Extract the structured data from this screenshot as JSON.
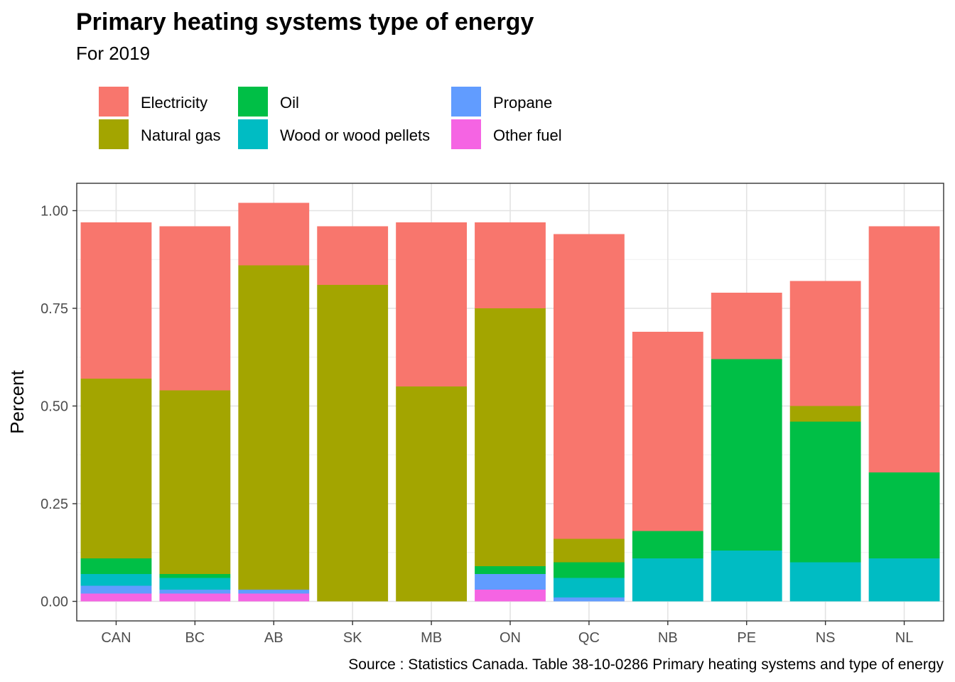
{
  "chart_data": {
    "type": "bar",
    "stacked": true,
    "title": "Primary heating systems type of energy",
    "subtitle": "For 2019",
    "xlabel": "",
    "ylabel": "Percent",
    "caption": "Source : Statistics Canada. Table 38-10-0286 Primary heating systems and type of energy",
    "ylim": [
      -0.05,
      1.07
    ],
    "yticks": [
      "0.00",
      "0.25",
      "0.50",
      "0.75",
      "1.00"
    ],
    "ytick_values": [
      0,
      0.25,
      0.5,
      0.75,
      1.0
    ],
    "grid": true,
    "legend_position": "top",
    "categories": [
      "CAN",
      "BC",
      "AB",
      "SK",
      "MB",
      "ON",
      "QC",
      "NB",
      "PE",
      "NS",
      "NL"
    ],
    "stack_order_bottom_to_top": [
      "Other fuel",
      "Propane",
      "Wood or wood pellets",
      "Oil",
      "Natural gas",
      "Electricity"
    ],
    "series": [
      {
        "name": "Electricity",
        "color": "#F8766D",
        "values": [
          0.4,
          0.42,
          0.16,
          0.15,
          0.42,
          0.22,
          0.78,
          0.51,
          0.17,
          0.32,
          0.63
        ]
      },
      {
        "name": "Natural gas",
        "color": "#A3A500",
        "values": [
          0.46,
          0.47,
          0.83,
          0.81,
          0.55,
          0.66,
          0.06,
          0.0,
          0.0,
          0.04,
          0.0
        ]
      },
      {
        "name": "Oil",
        "color": "#00BF46",
        "values": [
          0.04,
          0.01,
          0.0,
          0.0,
          0.0,
          0.02,
          0.04,
          0.07,
          0.49,
          0.36,
          0.22
        ]
      },
      {
        "name": "Wood or wood pellets",
        "color": "#00BCC3",
        "values": [
          0.03,
          0.03,
          0.0,
          0.0,
          0.0,
          0.0,
          0.05,
          0.11,
          0.13,
          0.1,
          0.11
        ]
      },
      {
        "name": "Propane",
        "color": "#619CFF",
        "values": [
          0.02,
          0.01,
          0.01,
          0.0,
          0.0,
          0.04,
          0.01,
          0.0,
          0.0,
          0.0,
          0.0
        ]
      },
      {
        "name": "Other fuel",
        "color": "#F564E3",
        "values": [
          0.02,
          0.02,
          0.02,
          0.0,
          0.0,
          0.03,
          0.0,
          0.0,
          0.0,
          0.0,
          0.0
        ]
      }
    ],
    "legend_order": [
      "Electricity",
      "Natural gas",
      "Oil",
      "Wood or wood pellets",
      "Propane",
      "Other fuel"
    ]
  }
}
